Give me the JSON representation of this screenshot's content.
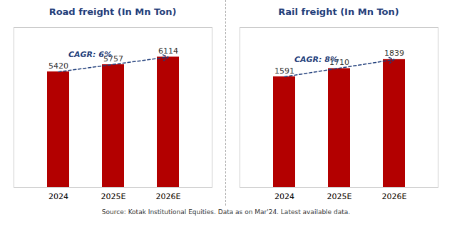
{
  "chart_data": [
    {
      "type": "bar",
      "title": "Road freight (In Mn Ton)",
      "categories": [
        "2024",
        "2025E",
        "2026E"
      ],
      "values": [
        5420,
        5757,
        6114
      ],
      "color": "#b30000",
      "ylim": [
        0,
        7500
      ],
      "tick_labels": "x",
      "data_labels": true,
      "grid": false,
      "annotations": [
        {
          "text": "CAGR: 6%",
          "color": "#1f3d7a"
        }
      ]
    },
    {
      "type": "bar",
      "title": "Rail freight (In Mn Ton)",
      "categories": [
        "2024",
        "2025E",
        "2026E"
      ],
      "values": [
        1591,
        1710,
        1839
      ],
      "color": "#b30000",
      "ylim": [
        0,
        2300
      ],
      "tick_labels": "x",
      "data_labels": true,
      "grid": false,
      "annotations": [
        {
          "text": "CAGR: 8%",
          "color": "#1f3d7a"
        }
      ]
    }
  ],
  "caption": "Source: Kotak Institutional Equities. Data as on Mar'24. Latest available data."
}
